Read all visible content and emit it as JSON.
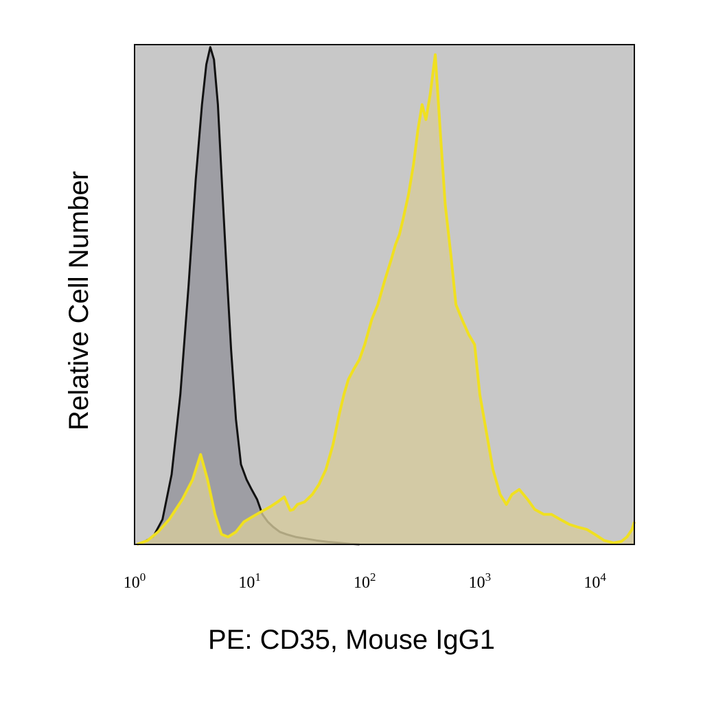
{
  "chart_data": {
    "type": "area",
    "title": "",
    "xlabel": "PE: CD35, Mouse IgG1",
    "ylabel": "Relative Cell Number",
    "x_scale": "log",
    "xlim": [
      1,
      22000
    ],
    "ylim": [
      0,
      100
    ],
    "x_ticks": [
      {
        "value": 1,
        "base": "10",
        "exp": "0"
      },
      {
        "value": 10,
        "base": "10",
        "exp": "1"
      },
      {
        "value": 100,
        "base": "10",
        "exp": "2"
      },
      {
        "value": 1000,
        "base": "10",
        "exp": "3"
      },
      {
        "value": 10000,
        "base": "10",
        "exp": "4"
      }
    ],
    "grid": false,
    "legend": "none",
    "plot_background": "#c8c8c8",
    "series": [
      {
        "color": "#111111",
        "fill": "#9c9ca2",
        "x": [
          1.2,
          1.45,
          1.75,
          2.1,
          2.5,
          2.95,
          3.4,
          3.85,
          4.2,
          4.55,
          4.9,
          5.3,
          5.75,
          6.3,
          6.9,
          7.6,
          8.4,
          9.4,
          10.4,
          11.6,
          12.9,
          14.4,
          16.0,
          18.3,
          21.0,
          25.0,
          30.0,
          38.0,
          48.0,
          60.0,
          75.0,
          90.0
        ],
        "y": [
          0.5,
          1.5,
          5,
          14,
          30,
          52,
          73,
          88,
          96,
          99.5,
          97,
          88,
          72,
          55,
          39,
          25,
          16,
          13,
          11,
          9,
          6,
          4.5,
          3.5,
          2.5,
          2.0,
          1.5,
          1.2,
          0.8,
          0.5,
          0.3,
          0.1,
          0
        ]
      },
      {
        "color": "#f0e020",
        "fill": "#d6cb9c",
        "x": [
          1.05,
          1.3,
          1.6,
          2.0,
          2.6,
          3.2,
          3.75,
          4.3,
          5.0,
          5.7,
          6.5,
          7.6,
          8.9,
          10.5,
          12.5,
          15.0,
          17.5,
          20.0,
          22.5,
          24.0,
          26.0,
          30.0,
          35.0,
          40.0,
          46.0,
          53.0,
          60.0,
          66.0,
          72.0,
          80.0,
          90.0,
          100.0,
          115.0,
          130.0,
          150.0,
          170.0,
          185.0,
          200.0,
          215.0,
          240.0,
          265.0,
          290.0,
          315.0,
          340.0,
          370.0,
          410.0,
          455.0,
          500.0,
          560.0,
          620.0,
          700.0,
          800.0,
          900.0,
          1000.0,
          1150.0,
          1300.0,
          1500.0,
          1700.0,
          1900.0,
          2200.0,
          2600.0,
          3000.0,
          3600.0,
          4200.0,
          5000.0,
          6000.0,
          7000.0,
          8500.0,
          10000.0,
          12000.0,
          14500.0,
          17000.0,
          19000.0,
          21000.0,
          22000.0
        ],
        "y": [
          0,
          0.8,
          2.5,
          5,
          9,
          13,
          18,
          13,
          6,
          2,
          1.5,
          2.5,
          4.5,
          5.5,
          6.5,
          7.5,
          8.5,
          9.5,
          6.8,
          7,
          8,
          8.5,
          10,
          12,
          15,
          20,
          26,
          30,
          33,
          35,
          37,
          40,
          45,
          48,
          53,
          57,
          60,
          62,
          65,
          70,
          76,
          83,
          88,
          85,
          90,
          98,
          82,
          68,
          58,
          48,
          45,
          42,
          40,
          30,
          22,
          15,
          10,
          8,
          10,
          11,
          9,
          7,
          6,
          6,
          5,
          4,
          3.5,
          3,
          2,
          0.8,
          0.3,
          0.6,
          1.5,
          3,
          4.5
        ]
      }
    ]
  }
}
